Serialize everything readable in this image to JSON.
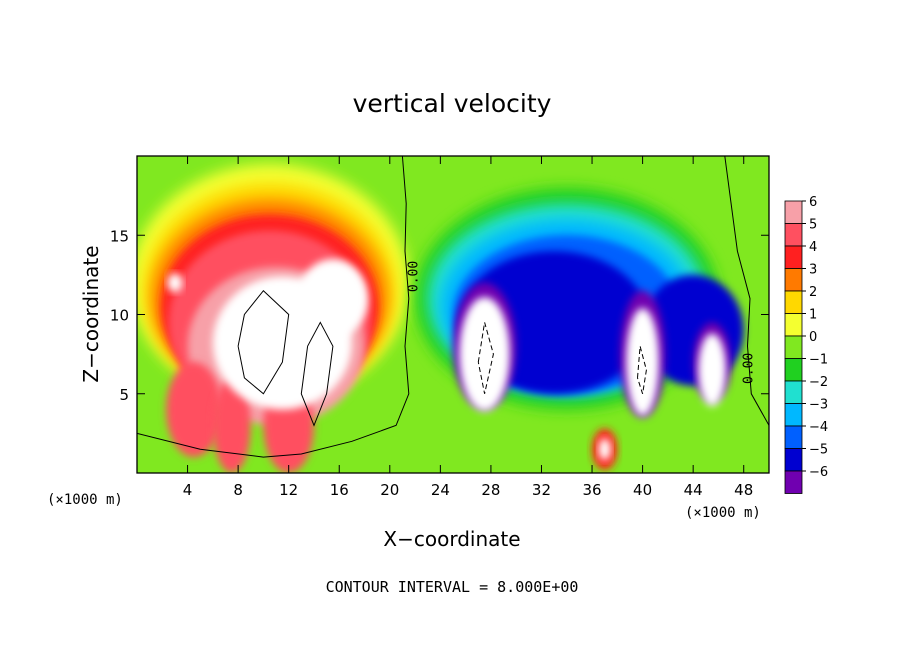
{
  "chart_data": {
    "type": "heatmap",
    "title": "vertical velocity",
    "xlabel": "X−coordinate",
    "ylabel": "Z−coordinate",
    "x_multiplier_left": "(×1000 m)",
    "x_multiplier_right": "(×1000 m)",
    "xlim": [
      0,
      50
    ],
    "ylim": [
      0,
      20
    ],
    "xticks": [
      4,
      8,
      12,
      16,
      20,
      24,
      28,
      32,
      36,
      40,
      44,
      48
    ],
    "yticks": [
      5,
      10,
      15
    ],
    "grid": false,
    "colorbar": {
      "min": -6,
      "max": 6,
      "ticks": [
        6,
        5,
        4,
        3,
        2,
        1,
        0,
        -1,
        -2,
        -3,
        -4,
        -5,
        -6
      ],
      "tick_labels": [
        "6",
        "5",
        "4",
        "3",
        "2",
        "1",
        "0",
        "−1",
        "−2",
        "−3",
        "−4",
        "−5",
        "−6"
      ],
      "colors": [
        "#f7a0a8",
        "#ff5060",
        "#ff2020",
        "#ff7a00",
        "#ffd800",
        "#f4ff30",
        "#80e820",
        "#20d020",
        "#20e0d0",
        "#00b8ff",
        "#0060ff",
        "#0000d0",
        "#7000b0"
      ]
    },
    "updraft_color": "#ffffff",
    "contour_labels": [
      "0.00",
      "0.00"
    ],
    "contour_interval_note": "CONTOUR INTERVAL = 8.000E+00",
    "features": [
      {
        "kind": "updraft",
        "x_center": 11,
        "z_center": 8,
        "w_peak": 6
      },
      {
        "kind": "downdraft",
        "x_center": 34,
        "z_center": 10,
        "w_peak": -6
      }
    ]
  }
}
